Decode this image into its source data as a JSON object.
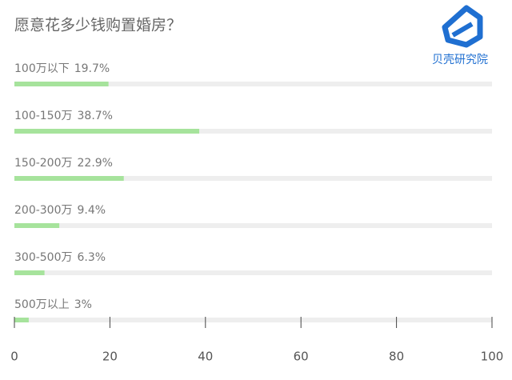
{
  "chart_data": {
    "type": "bar",
    "orientation": "horizontal",
    "title": "愿意花多少钱购置婚房？",
    "logo": "贝壳研究院",
    "categories": [
      "100万以下",
      "100-150万",
      "150-200万",
      "200-300万",
      "300-500万",
      "500万以上"
    ],
    "values": [
      19.7,
      38.7,
      22.9,
      9.4,
      6.3,
      3
    ],
    "value_labels": [
      "19.7%",
      "38.7%",
      "22.9%",
      "9.4%",
      "6.3%",
      "3%"
    ],
    "color": "#a6e39c",
    "track_color": "#eeeeee",
    "xlim": [
      0,
      100
    ],
    "xticks": [
      0,
      20,
      40,
      60,
      80,
      100
    ]
  }
}
